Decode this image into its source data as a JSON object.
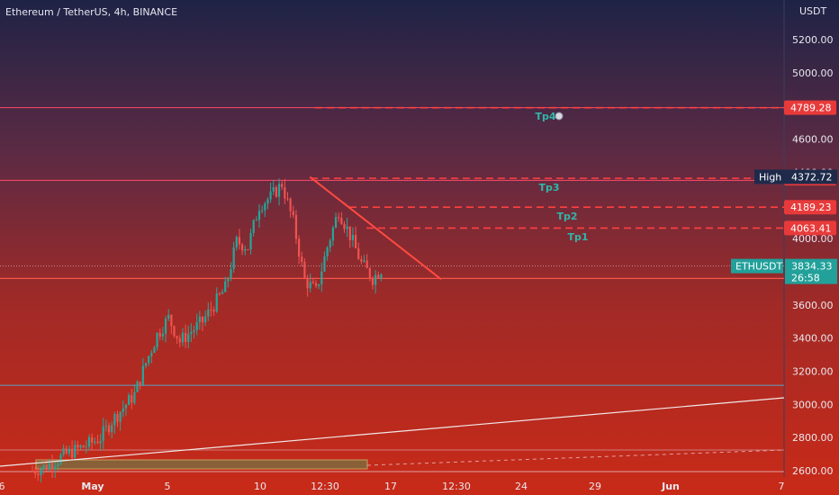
{
  "header": {
    "title": "Ethereum / TetherUS, 4h, BINANCE",
    "currency": "USDT"
  },
  "colors": {
    "bg_top": "#1e2346",
    "bg_mid": "#7a2a3a",
    "bg_bottom": "#c4291a",
    "up": "#26a69a",
    "down": "#ef5350",
    "level_line": "#ff3b3b",
    "tp_label": "#2fb7aa",
    "badge_red": "#e83a3a",
    "badge_teal": "#22a09a",
    "badge_navy": "#1f2a4a"
  },
  "chart_data": {
    "type": "candlestick",
    "y_axis": {
      "min": 2580,
      "max": 5300,
      "ticks": [
        2600,
        2800,
        3000,
        3200,
        3400,
        3600,
        4000,
        4200,
        4400,
        4600,
        5000,
        5200
      ]
    },
    "x_axis": {
      "ticks": [
        "6",
        "May",
        "5",
        "10",
        "12:30",
        "17",
        "12:30",
        "24",
        "29",
        "Jun",
        "7"
      ]
    },
    "levels": [
      {
        "name": "Tp4",
        "value": 4789.28,
        "label": "4789.28",
        "tag": "Tp4"
      },
      {
        "name": "Tp3",
        "value": 4363.44,
        "label": "4363.44",
        "tag": "Tp3"
      },
      {
        "name": "Tp2",
        "value": 4189.23,
        "label": "4189.23",
        "tag": "Tp2"
      },
      {
        "name": "Tp1",
        "value": 4063.41,
        "label": "4063.41",
        "tag": "Tp1"
      }
    ],
    "high": {
      "label": "High",
      "value": 4372.72,
      "text": "4372.72"
    },
    "last": {
      "symbol": "ETHUSDT",
      "value": 3834.33,
      "text": "3834.33",
      "countdown": "26:58"
    },
    "support_line": 3760,
    "low_line": 3115,
    "trendline_down": {
      "from": {
        "t": 82,
        "price": 4372
      },
      "to": {
        "t": 130,
        "price": 3760
      }
    },
    "trendline_up": {
      "from": {
        "t": 0,
        "price": 2630
      },
      "to": {
        "t": 233,
        "price": 3035
      }
    },
    "candles_anchors": [
      [
        0,
        2600
      ],
      [
        4,
        2620
      ],
      [
        8,
        2660
      ],
      [
        12,
        2700
      ],
      [
        16,
        2730
      ],
      [
        20,
        2760
      ],
      [
        24,
        2800
      ],
      [
        28,
        2900
      ],
      [
        32,
        2980
      ],
      [
        36,
        3060
      ],
      [
        40,
        3250
      ],
      [
        44,
        3420
      ],
      [
        48,
        3520
      ],
      [
        52,
        3380
      ],
      [
        56,
        3440
      ],
      [
        60,
        3500
      ],
      [
        64,
        3600
      ],
      [
        68,
        3700
      ],
      [
        72,
        3980
      ],
      [
        76,
        3950
      ],
      [
        80,
        4200
      ],
      [
        84,
        4250
      ],
      [
        88,
        4330
      ],
      [
        92,
        4100
      ],
      [
        96,
        3750
      ],
      [
        100,
        3680
      ],
      [
        104,
        3950
      ],
      [
        108,
        4170
      ],
      [
        112,
        4020
      ],
      [
        116,
        3850
      ],
      [
        120,
        3760
      ],
      [
        124,
        3834
      ]
    ]
  }
}
